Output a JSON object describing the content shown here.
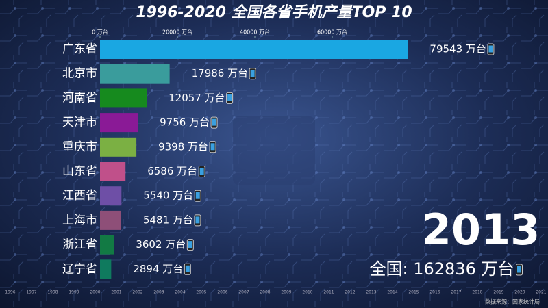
{
  "chart_data": {
    "type": "bar",
    "orientation": "horizontal",
    "title": "1996-2020 全国各省手机产量TOP 10",
    "categories": [
      "广东省",
      "北京市",
      "河南省",
      "天津市",
      "重庆市",
      "山东省",
      "江西省",
      "上海市",
      "浙江省",
      "辽宁省"
    ],
    "values": [
      79543,
      17986,
      12057,
      9756,
      9398,
      6586,
      5540,
      5481,
      3602,
      2894
    ],
    "value_labels": [
      "79543 万台",
      "17986 万台",
      "12057 万台",
      "9756 万台",
      "9398 万台",
      "6586 万台",
      "5540 万台",
      "5481 万台",
      "3602 万台",
      "2894 万台"
    ],
    "colors": [
      "#1aa7e2",
      "#3a9c9c",
      "#168a1e",
      "#8a1a96",
      "#7bb043",
      "#c0508a",
      "#6e4fa6",
      "#8e4f78",
      "#127a44",
      "#0f7a5e"
    ],
    "xlim": [
      0,
      80000
    ],
    "xticks": [
      {
        "value": 0,
        "label": "0 万台"
      },
      {
        "value": 20000,
        "label": "20000 万台"
      },
      {
        "value": 40000,
        "label": "40000 万台"
      },
      {
        "value": 60000,
        "label": "60000 万台"
      }
    ],
    "year": "2013",
    "total": "全国: 162836 万台",
    "timeline": [
      1996,
      1997,
      1998,
      1999,
      2000,
      2001,
      2002,
      2003,
      2004,
      2005,
      2006,
      2007,
      2008,
      2009,
      2010,
      2011,
      2012,
      2013,
      2014,
      2015,
      2016,
      2017,
      2018,
      2019,
      2020,
      2021
    ],
    "source": "数据来源：国家统计局"
  }
}
